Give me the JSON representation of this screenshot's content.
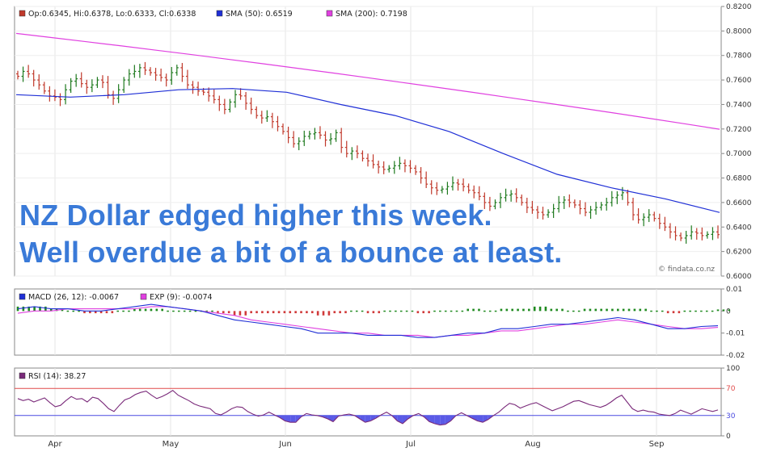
{
  "overlay": {
    "line1": "NZ Dollar edged higher this week.",
    "line2": "Well overdue a bit of a bounce at least."
  },
  "watermark": "© findata.co.nz",
  "colors": {
    "up": "#1f7a1f",
    "down": "#c0392b",
    "sma50": "#1f2fd6",
    "sma200": "#e040e0",
    "macd": "#1f2fd6",
    "exp": "#e040e0",
    "hist_up": "#1f8a1f",
    "hist_down": "#d03a3a",
    "rsi": "#7a2a7a",
    "rsi_fill": "#5a5ae6",
    "rsi70": "#e04a4a",
    "rsi30": "#4a4ae0",
    "overlay_text": "#3a7ad8"
  },
  "chart_data": [
    {
      "type": "line",
      "subtype": "ohlc",
      "legend": [
        {
          "text": "Op:0.6345, Hi:0.6378, Lo:0.6333, Cl:0.6338",
          "color": "#c0392b"
        },
        {
          "text": "SMA (50): 0.6519",
          "color": "#1f2fd6"
        },
        {
          "text": "SMA (200): 0.7198",
          "color": "#e040e0"
        }
      ],
      "ylim": [
        0.6,
        0.82
      ],
      "yticks": [
        "0.6000",
        "0.6200",
        "0.6400",
        "0.6600",
        "0.6800",
        "0.7000",
        "0.7200",
        "0.7400",
        "0.7600",
        "0.7800",
        "0.8000",
        "0.8200"
      ],
      "x_start": "2014-03-20",
      "x_end": "2014-09-18",
      "close": [
        0.763,
        0.767,
        0.765,
        0.76,
        0.756,
        0.751,
        0.747,
        0.746,
        0.744,
        0.752,
        0.759,
        0.761,
        0.757,
        0.754,
        0.756,
        0.76,
        0.758,
        0.748,
        0.745,
        0.752,
        0.76,
        0.765,
        0.767,
        0.77,
        0.768,
        0.766,
        0.764,
        0.762,
        0.76,
        0.766,
        0.77,
        0.763,
        0.756,
        0.754,
        0.751,
        0.75,
        0.747,
        0.744,
        0.74,
        0.736,
        0.742,
        0.748,
        0.747,
        0.741,
        0.736,
        0.731,
        0.729,
        0.73,
        0.726,
        0.722,
        0.718,
        0.713,
        0.708,
        0.71,
        0.714,
        0.716,
        0.717,
        0.715,
        0.711,
        0.712,
        0.717,
        0.705,
        0.7,
        0.702,
        0.7,
        0.696,
        0.694,
        0.691,
        0.689,
        0.687,
        0.688,
        0.69,
        0.692,
        0.69,
        0.688,
        0.685,
        0.68,
        0.675,
        0.672,
        0.67,
        0.671,
        0.673,
        0.676,
        0.675,
        0.673,
        0.67,
        0.668,
        0.665,
        0.66,
        0.657,
        0.66,
        0.664,
        0.666,
        0.667,
        0.664,
        0.66,
        0.656,
        0.654,
        0.652,
        0.65,
        0.652,
        0.655,
        0.66,
        0.662,
        0.66,
        0.658,
        0.655,
        0.652,
        0.654,
        0.656,
        0.658,
        0.66,
        0.664,
        0.666,
        0.668,
        0.66,
        0.65,
        0.646,
        0.648,
        0.65,
        0.647,
        0.643,
        0.64,
        0.636,
        0.633,
        0.631,
        0.633,
        0.636,
        0.635,
        0.633,
        0.634,
        0.636,
        0.6338
      ],
      "sma50": [
        [
          0,
          0.748
        ],
        [
          10,
          0.747
        ],
        [
          20,
          0.75
        ],
        [
          30,
          0.752
        ],
        [
          40,
          0.751
        ],
        [
          50,
          0.745
        ],
        [
          60,
          0.737
        ],
        [
          70,
          0.725
        ],
        [
          80,
          0.712
        ],
        [
          90,
          0.7
        ],
        [
          100,
          0.688
        ],
        [
          110,
          0.674
        ],
        [
          120,
          0.6519
        ],
        [
          130,
          0.6519
        ]
      ],
      "sma50_shape": [
        0.748,
        0.746,
        0.748,
        0.752,
        0.753,
        0.75,
        0.74,
        0.731,
        0.718,
        0.7,
        0.683,
        0.672,
        0.663,
        0.6519
      ],
      "sma200": [
        0.798,
        0.7198
      ]
    },
    {
      "type": "bar",
      "subtype": "macd",
      "legend": [
        {
          "text": "MACD (26, 12): -0.0067",
          "color": "#1f2fd6"
        },
        {
          "text": "EXP (9): -0.0074",
          "color": "#e040e0"
        }
      ],
      "ylim": [
        -0.02,
        0.01
      ],
      "yticks": [
        "0.01",
        "0",
        "-0.01",
        "-0.02"
      ],
      "macd": [
        0.001,
        0.002,
        0.001,
        0.001,
        0.0,
        0.0,
        0.001,
        0.002,
        0.003,
        0.002,
        0.001,
        0.0,
        -0.002,
        -0.004,
        -0.005,
        -0.006,
        -0.007,
        -0.008,
        -0.01,
        -0.01,
        -0.01,
        -0.011,
        -0.011,
        -0.011,
        -0.012,
        -0.012,
        -0.011,
        -0.01,
        -0.01,
        -0.008,
        -0.008,
        -0.007,
        -0.006,
        -0.006,
        -0.005,
        -0.004,
        -0.003,
        -0.004,
        -0.006,
        -0.008,
        -0.008,
        -0.007,
        -0.0067
      ],
      "exp": [
        -0.001,
        0.0,
        0.0,
        0.001,
        0.001,
        0.001,
        0.001,
        0.001,
        0.002,
        0.002,
        0.001,
        0.0,
        -0.001,
        -0.002,
        -0.004,
        -0.005,
        -0.006,
        -0.007,
        -0.008,
        -0.009,
        -0.01,
        -0.01,
        -0.011,
        -0.011,
        -0.011,
        -0.012,
        -0.011,
        -0.011,
        -0.01,
        -0.009,
        -0.009,
        -0.008,
        -0.007,
        -0.006,
        -0.006,
        -0.005,
        -0.004,
        -0.005,
        -0.006,
        -0.007,
        -0.008,
        -0.008,
        -0.0074
      ],
      "hist": [
        0.002,
        0.002,
        0.001,
        0.0,
        -0.001,
        -0.001,
        0.0,
        0.001,
        0.001,
        0.0,
        0.0,
        0.0,
        -0.001,
        -0.002,
        -0.001,
        -0.001,
        -0.001,
        -0.001,
        -0.002,
        -0.001,
        0.0,
        -0.001,
        0.0,
        0.0,
        -0.001,
        0.0,
        0.0,
        0.001,
        0.0,
        0.001,
        0.001,
        0.002,
        0.001,
        0.0,
        0.001,
        0.001,
        0.001,
        0.001,
        0.0,
        -0.001,
        0.0,
        0.0,
        0.0007
      ]
    },
    {
      "type": "line",
      "subtype": "rsi",
      "legend": [
        {
          "text": "RSI (14): 38.27",
          "color": "#7a2a7a"
        }
      ],
      "ylim": [
        0,
        100
      ],
      "yticks": [
        "100",
        "70",
        "30",
        "0"
      ],
      "refs": [
        70,
        30
      ],
      "values": [
        55,
        52,
        54,
        50,
        53,
        56,
        49,
        43,
        45,
        52,
        58,
        54,
        55,
        50,
        57,
        55,
        48,
        40,
        36,
        45,
        53,
        56,
        61,
        64,
        66,
        60,
        55,
        58,
        62,
        67,
        60,
        56,
        52,
        47,
        44,
        42,
        40,
        33,
        31,
        35,
        40,
        43,
        42,
        36,
        32,
        29,
        31,
        35,
        31,
        27,
        22,
        20,
        20,
        28,
        33,
        31,
        30,
        28,
        25,
        21,
        29,
        31,
        32,
        30,
        25,
        20,
        22,
        26,
        31,
        35,
        30,
        22,
        18,
        25,
        30,
        33,
        28,
        21,
        18,
        16,
        17,
        22,
        30,
        34,
        30,
        26,
        22,
        20,
        24,
        30,
        35,
        42,
        48,
        46,
        41,
        44,
        47,
        49,
        45,
        41,
        37,
        40,
        43,
        47,
        51,
        52,
        49,
        46,
        44,
        42,
        45,
        50,
        56,
        60,
        50,
        40,
        36,
        38,
        36,
        35,
        32,
        31,
        30,
        33,
        38,
        35,
        32,
        36,
        40,
        38,
        36,
        38.27
      ]
    }
  ],
  "x_axis": [
    "Apr",
    "May",
    "Jun",
    "Jul",
    "Aug",
    "Sep"
  ]
}
